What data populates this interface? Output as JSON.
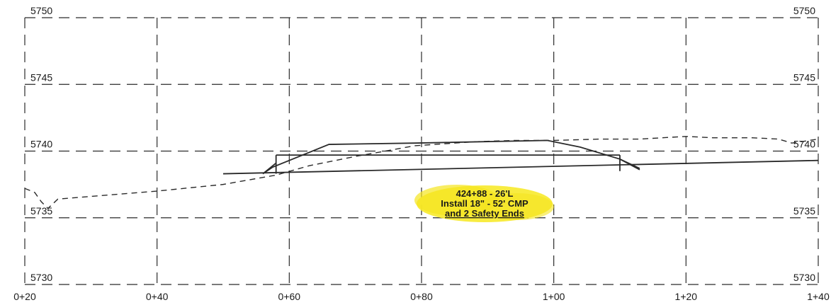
{
  "chart_data": {
    "type": "profile",
    "x_tick_labels": [
      "0+20",
      "0+40",
      "0+60",
      "0+80",
      "1+00",
      "1+20",
      "1+40"
    ],
    "y_tick_labels": [
      "5750",
      "5745",
      "5740",
      "5735",
      "5730"
    ],
    "xlim": [
      20,
      140
    ],
    "ylim": [
      5730,
      5750
    ],
    "grid": true,
    "annotation": {
      "lines": [
        "424+88 - 26'L",
        "Install 18\" - 52' CMP",
        "and 2 Safety Ends"
      ],
      "highlight_color": "#f7ea2c"
    },
    "existing_ground": {
      "style": "dashed",
      "x": [
        20,
        21.5,
        22.5,
        23.5,
        25,
        30,
        40,
        50,
        58,
        63,
        67,
        70,
        79,
        88,
        94,
        100,
        107,
        113,
        120,
        124,
        130,
        134,
        136,
        140
      ],
      "y": [
        5737.2,
        5736.9,
        5736.2,
        5735.7,
        5736.4,
        5736.6,
        5737.0,
        5737.5,
        5738.2,
        5738.9,
        5739.3,
        5739.6,
        5740.4,
        5740.7,
        5740.8,
        5740.8,
        5740.9,
        5740.9,
        5741.1,
        5741.0,
        5741.0,
        5740.9,
        5740.6,
        5740.9
      ]
    },
    "proposed_section": {
      "x": [
        56,
        57.5,
        66,
        79,
        99,
        104,
        110,
        113
      ],
      "y": [
        5738.3,
        5738.8,
        5740.5,
        5740.6,
        5740.8,
        5740.3,
        5739.4,
        5738.7
      ]
    },
    "culvert": {
      "top_y": 5739.7,
      "bottom_y": 5738.3,
      "x_start": 58,
      "x_end": 110,
      "flowline": {
        "x": [
          50,
          140
        ],
        "y": [
          5738.3,
          5739.3
        ]
      },
      "left_end_section": {
        "x": [
          56,
          58
        ],
        "y": [
          5738.3,
          5739.1
        ]
      },
      "right_end_section": {
        "x": [
          110,
          113
        ],
        "y": [
          5739.4,
          5738.6
        ]
      }
    }
  }
}
